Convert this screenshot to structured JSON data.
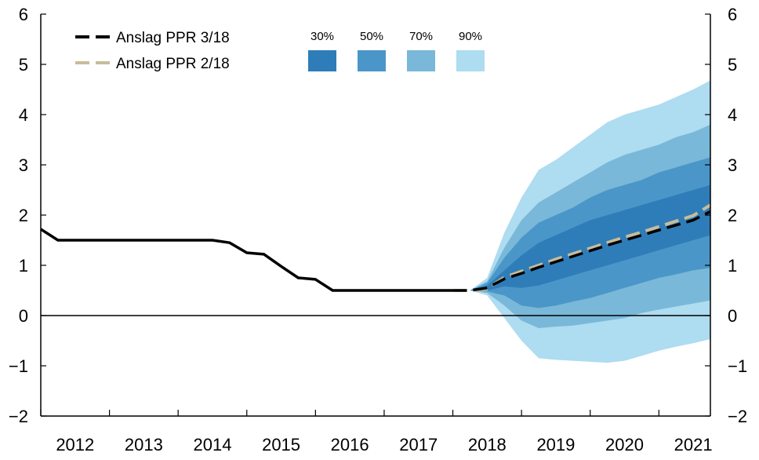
{
  "chart_data": {
    "type": "line",
    "xlim": [
      2012.0,
      2021.75
    ],
    "ylim": [
      -2,
      6
    ],
    "yticks": [
      -2,
      -1,
      0,
      1,
      2,
      3,
      4,
      5,
      6
    ],
    "ytick_labels": [
      "−2",
      "−1",
      "0",
      "1",
      "2",
      "3",
      "4",
      "5",
      "6"
    ],
    "xticks": [
      2012,
      2013,
      2014,
      2015,
      2016,
      2017,
      2018,
      2019,
      2020,
      2021
    ],
    "xtick_labels": [
      "2012",
      "2013",
      "2014",
      "2015",
      "2016",
      "2017",
      "2018",
      "2019",
      "2020",
      "2021"
    ],
    "grid": false,
    "zero_line": true,
    "series": [
      {
        "name": "Anslag PPR 3/18",
        "color": "#000000",
        "style": "solid-then-dashed",
        "x": [
          2012.0,
          2012.25,
          2012.5,
          2012.75,
          2013.0,
          2013.25,
          2013.5,
          2013.75,
          2014.0,
          2014.25,
          2014.5,
          2014.75,
          2015.0,
          2015.25,
          2015.5,
          2015.75,
          2016.0,
          2016.25,
          2016.5,
          2016.75,
          2017.0,
          2017.25,
          2017.5,
          2017.75,
          2018.0,
          2018.25,
          2018.5,
          2018.75,
          2019.0,
          2019.25,
          2019.5,
          2019.75,
          2020.0,
          2020.25,
          2020.5,
          2020.75,
          2021.0,
          2021.25,
          2021.5,
          2021.75
        ],
        "values": [
          1.72,
          1.5,
          1.5,
          1.5,
          1.5,
          1.5,
          1.5,
          1.5,
          1.5,
          1.5,
          1.5,
          1.45,
          1.25,
          1.22,
          0.98,
          0.75,
          0.72,
          0.5,
          0.5,
          0.5,
          0.5,
          0.5,
          0.5,
          0.5,
          0.5,
          0.5,
          0.55,
          0.73,
          0.84,
          0.96,
          1.07,
          1.18,
          1.29,
          1.4,
          1.5,
          1.6,
          1.7,
          1.8,
          1.9,
          2.07
        ],
        "forecast_from": 2018.0
      },
      {
        "name": "Anslag PPR 2/18",
        "color": "#c8bc9c",
        "style": "dashed",
        "x": [
          2018.0,
          2018.25,
          2018.5,
          2018.75,
          2019.0,
          2019.25,
          2019.5,
          2019.75,
          2020.0,
          2020.25,
          2020.5,
          2020.75,
          2021.0,
          2021.25,
          2021.5,
          2021.75
        ],
        "values": [
          0.5,
          0.5,
          0.53,
          0.76,
          0.88,
          1.0,
          1.12,
          1.23,
          1.34,
          1.45,
          1.56,
          1.66,
          1.77,
          1.88,
          1.99,
          2.2
        ]
      }
    ],
    "bands": {
      "x": [
        2018.25,
        2018.5,
        2018.75,
        2019.0,
        2019.25,
        2019.5,
        2019.75,
        2020.0,
        2020.25,
        2020.5,
        2020.75,
        2021.0,
        2021.25,
        2021.5,
        2021.75
      ],
      "median": [
        0.5,
        0.55,
        0.73,
        0.84,
        0.96,
        1.07,
        1.18,
        1.29,
        1.4,
        1.5,
        1.6,
        1.7,
        1.8,
        1.9,
        2.07
      ],
      "levels": [
        {
          "name": "90%",
          "color": "#aedcf0",
          "lower": [
            0.5,
            0.4,
            -0.05,
            -0.5,
            -0.85,
            -0.88,
            -0.9,
            -0.92,
            -0.94,
            -0.9,
            -0.8,
            -0.7,
            -0.62,
            -0.55,
            -0.47
          ],
          "upper": [
            0.5,
            0.75,
            1.65,
            2.35,
            2.9,
            3.1,
            3.35,
            3.6,
            3.85,
            4.0,
            4.1,
            4.2,
            4.35,
            4.5,
            4.68
          ]
        },
        {
          "name": "70%",
          "color": "#79b8d8",
          "lower": [
            0.5,
            0.45,
            0.2,
            -0.1,
            -0.25,
            -0.22,
            -0.2,
            -0.15,
            -0.1,
            -0.05,
            0.05,
            0.12,
            0.18,
            0.24,
            0.3
          ],
          "upper": [
            0.5,
            0.68,
            1.35,
            1.9,
            2.25,
            2.45,
            2.65,
            2.85,
            3.05,
            3.2,
            3.3,
            3.4,
            3.55,
            3.65,
            3.8
          ]
        },
        {
          "name": "50%",
          "color": "#4b96c8",
          "lower": [
            0.5,
            0.48,
            0.4,
            0.2,
            0.15,
            0.2,
            0.28,
            0.35,
            0.45,
            0.55,
            0.65,
            0.75,
            0.82,
            0.9,
            0.95
          ],
          "upper": [
            0.5,
            0.65,
            1.15,
            1.55,
            1.85,
            2.0,
            2.15,
            2.35,
            2.5,
            2.6,
            2.7,
            2.85,
            2.95,
            3.05,
            3.15
          ]
        },
        {
          "name": "30%",
          "color": "#2f7db8",
          "lower": [
            0.5,
            0.5,
            0.58,
            0.55,
            0.6,
            0.7,
            0.8,
            0.9,
            1.0,
            1.1,
            1.2,
            1.3,
            1.4,
            1.5,
            1.6
          ],
          "upper": [
            0.5,
            0.6,
            0.9,
            1.2,
            1.45,
            1.6,
            1.75,
            1.9,
            2.0,
            2.1,
            2.2,
            2.3,
            2.4,
            2.5,
            2.6
          ]
        }
      ]
    },
    "legend": {
      "placement": "top-left",
      "lines": [
        {
          "label": "Anslag PPR 3/18",
          "color": "#000000"
        },
        {
          "label": "Anslag PPR 2/18",
          "color": "#c8bc9c"
        }
      ],
      "bands": [
        {
          "label": "30%",
          "color": "#2f7db8"
        },
        {
          "label": "50%",
          "color": "#4b96c8"
        },
        {
          "label": "70%",
          "color": "#79b8d8"
        },
        {
          "label": "90%",
          "color": "#aedcf0"
        }
      ]
    }
  }
}
